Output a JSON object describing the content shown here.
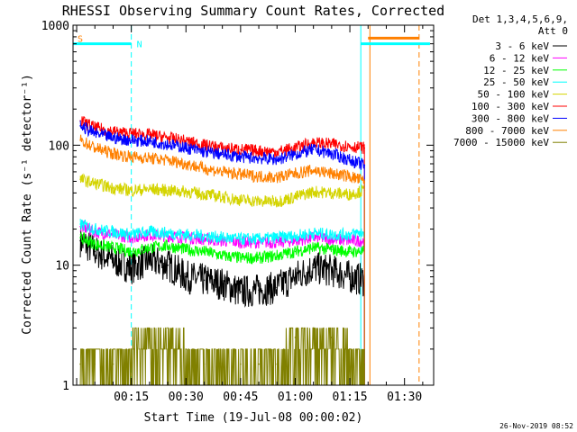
{
  "chart_data": {
    "type": "line",
    "title": "RHESSI Observing Summary Count Rates, Corrected",
    "xlabel": "Start Time (19-Jul-08 00:00:02)",
    "ylabel": "Corrected Count Rate (s⁻¹ detector⁻¹)",
    "x_units": "minutes after start",
    "xlim": [
      -1,
      98
    ],
    "ylim": [
      1,
      1000
    ],
    "yscale": "log",
    "x_ticks": [
      {
        "value": 15,
        "label": "00:15"
      },
      {
        "value": 30,
        "label": "00:30"
      },
      {
        "value": 45,
        "label": "00:45"
      },
      {
        "value": 60,
        "label": "01:00"
      },
      {
        "value": 75,
        "label": "01:15"
      },
      {
        "value": 90,
        "label": "01:30"
      }
    ],
    "y_ticks": [
      {
        "value": 1,
        "label": "1"
      },
      {
        "value": 10,
        "label": "10"
      },
      {
        "value": 100,
        "label": "100"
      },
      {
        "value": 1000,
        "label": "1000"
      }
    ],
    "legend": {
      "title_line1": "Det 1,3,4,5,6,9,",
      "title_line2": "Att 0",
      "position": "right"
    },
    "series": [
      {
        "name": "3 - 6 keV",
        "color": "#000000",
        "x": [
          1,
          5,
          10,
          15,
          20,
          25,
          30,
          35,
          40,
          45,
          50,
          55,
          60,
          65,
          70,
          75,
          79
        ],
        "values": [
          16,
          13,
          11,
          9.5,
          11,
          10,
          8,
          7.5,
          7,
          6,
          6.2,
          6.5,
          8,
          9.5,
          9,
          8,
          7.5
        ]
      },
      {
        "name": "6 - 12 keV",
        "color": "#ff00ff",
        "x": [
          1,
          5,
          10,
          15,
          20,
          25,
          30,
          35,
          40,
          45,
          50,
          55,
          60,
          65,
          70,
          75,
          79
        ],
        "values": [
          21,
          19,
          18,
          17,
          18,
          17.5,
          17,
          16.5,
          16,
          15.5,
          15.5,
          15.5,
          16,
          17,
          16.5,
          16,
          16
        ]
      },
      {
        "name": "12 - 25 keV",
        "color": "#00ff00",
        "x": [
          1,
          5,
          10,
          15,
          20,
          25,
          30,
          35,
          40,
          45,
          50,
          55,
          60,
          65,
          70,
          75,
          79
        ],
        "values": [
          17,
          15,
          14,
          13,
          14,
          14.5,
          13.5,
          13,
          12,
          11.5,
          11.5,
          12,
          13,
          14,
          13.5,
          13,
          13
        ]
      },
      {
        "name": "25 - 50 keV",
        "color": "#00ffff",
        "x": [
          1,
          5,
          10,
          15,
          20,
          25,
          30,
          35,
          40,
          45,
          50,
          55,
          60,
          65,
          70,
          75,
          79
        ],
        "values": [
          22,
          20,
          19,
          18,
          19,
          18.5,
          18,
          17.5,
          17,
          16.5,
          16.5,
          17,
          17.5,
          18.5,
          18,
          18,
          19
        ]
      },
      {
        "name": "50 - 100 keV",
        "color": "#d4d400",
        "x": [
          1,
          5,
          10,
          15,
          20,
          25,
          30,
          35,
          40,
          45,
          50,
          55,
          60,
          65,
          70,
          75,
          79
        ],
        "values": [
          52,
          48,
          44,
          42,
          43,
          42,
          41,
          39,
          37,
          35,
          34,
          34,
          37,
          41,
          40,
          39,
          42
        ]
      },
      {
        "name": "100 - 300 keV",
        "color": "#ff0000",
        "x": [
          1,
          5,
          10,
          15,
          20,
          25,
          30,
          35,
          40,
          45,
          50,
          55,
          60,
          65,
          70,
          75,
          79
        ],
        "values": [
          160,
          140,
          130,
          125,
          122,
          115,
          108,
          100,
          95,
          92,
          90,
          88,
          95,
          105,
          102,
          98,
          95
        ]
      },
      {
        "name": "300 - 800 keV",
        "color": "#0000ff",
        "x": [
          1,
          5,
          10,
          15,
          20,
          25,
          30,
          35,
          40,
          45,
          50,
          55,
          60,
          65,
          70,
          75,
          79
        ],
        "values": [
          145,
          125,
          115,
          110,
          108,
          102,
          95,
          88,
          84,
          80,
          78,
          76,
          84,
          92,
          85,
          75,
          68
        ]
      },
      {
        "name": "800 - 7000 keV",
        "color": "#ff8000",
        "x": [
          1,
          5,
          10,
          15,
          20,
          25,
          30,
          35,
          40,
          45,
          50,
          55,
          60,
          65,
          70,
          75,
          79
        ],
        "values": [
          110,
          95,
          85,
          80,
          78,
          75,
          70,
          64,
          60,
          57,
          55,
          54,
          58,
          62,
          58,
          55,
          50
        ]
      },
      {
        "name": "7000 - 15000 keV",
        "color": "#808000",
        "x": [
          1,
          5,
          10,
          15,
          20,
          25,
          30,
          35,
          40,
          45,
          50,
          55,
          60,
          65,
          70,
          75,
          79
        ],
        "values": [
          1.5,
          1.5,
          1.5,
          2,
          2.5,
          3,
          2,
          1.5,
          1.5,
          1.5,
          1.5,
          1.5,
          2.5,
          3,
          2.5,
          2,
          1.5
        ]
      }
    ],
    "vertical_markers": [
      {
        "x": -1,
        "color": "#00ffff",
        "style": "dashed"
      },
      {
        "x": 15,
        "color": "#00ffff",
        "style": "dashed"
      },
      {
        "x": 78,
        "color": "#00ffff",
        "style": "solid"
      },
      {
        "x": 80.5,
        "color": "#ff8000",
        "style": "solid"
      },
      {
        "x": 94,
        "color": "#ff8000",
        "style": "dashed"
      }
    ],
    "state_bars": [
      {
        "label": "N",
        "color": "#00ffff",
        "x_start": -1,
        "x_end": 15,
        "y": 700
      },
      {
        "label": "",
        "color": "#00ffff",
        "x_start": 78,
        "x_end": 97,
        "y": 700
      },
      {
        "label": "S",
        "color": "#ff8000",
        "x_start": -1,
        "x_end": -1,
        "y": 780
      },
      {
        "label": "",
        "color": "#ff8000",
        "x_start": 80,
        "x_end": 94,
        "y": 780
      }
    ],
    "annotations": [
      "S",
      "N"
    ]
  },
  "footer": {
    "timestamp": "26-Nov-2019 08:52"
  }
}
